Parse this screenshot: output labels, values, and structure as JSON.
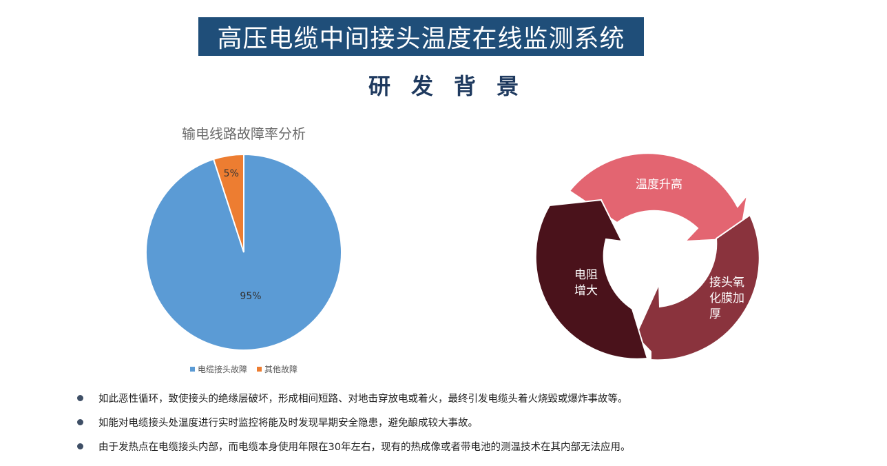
{
  "header": {
    "title": "高压电缆中间接头温度在线监测系统",
    "subtitle": "研发背景"
  },
  "chart_data": {
    "type": "pie",
    "title": "输电线路故障率分析",
    "categories": [
      "电缆接头故障",
      "其他故障"
    ],
    "values": [
      95,
      5
    ],
    "labels": [
      "95%",
      "5%"
    ],
    "colors": [
      "#5b9bd5",
      "#ed7d31"
    ],
    "legend_position": "bottom"
  },
  "cycle": {
    "segments": [
      {
        "label": "温度升高",
        "color": "#e36571"
      },
      {
        "label": "接头氧化膜加厚",
        "color": "#8a333d"
      },
      {
        "label": "电阻增大",
        "color": "#4a121b"
      }
    ]
  },
  "bullets": [
    "如此恶性循环，致使接头的绝缘层破坏，形成相间短路、对地击穿放电或着火，最终引发电缆头着火烧毁或爆炸事故等。",
    "如能对电缆接头处温度进行实时监控将能及时发现早期安全隐患，避免酿成较大事故。",
    "由于发热点在电缆接头内部，而电缆本身使用年限在30年左右，现有的热成像或者带电池的测温技术在其内部无法应用。"
  ]
}
